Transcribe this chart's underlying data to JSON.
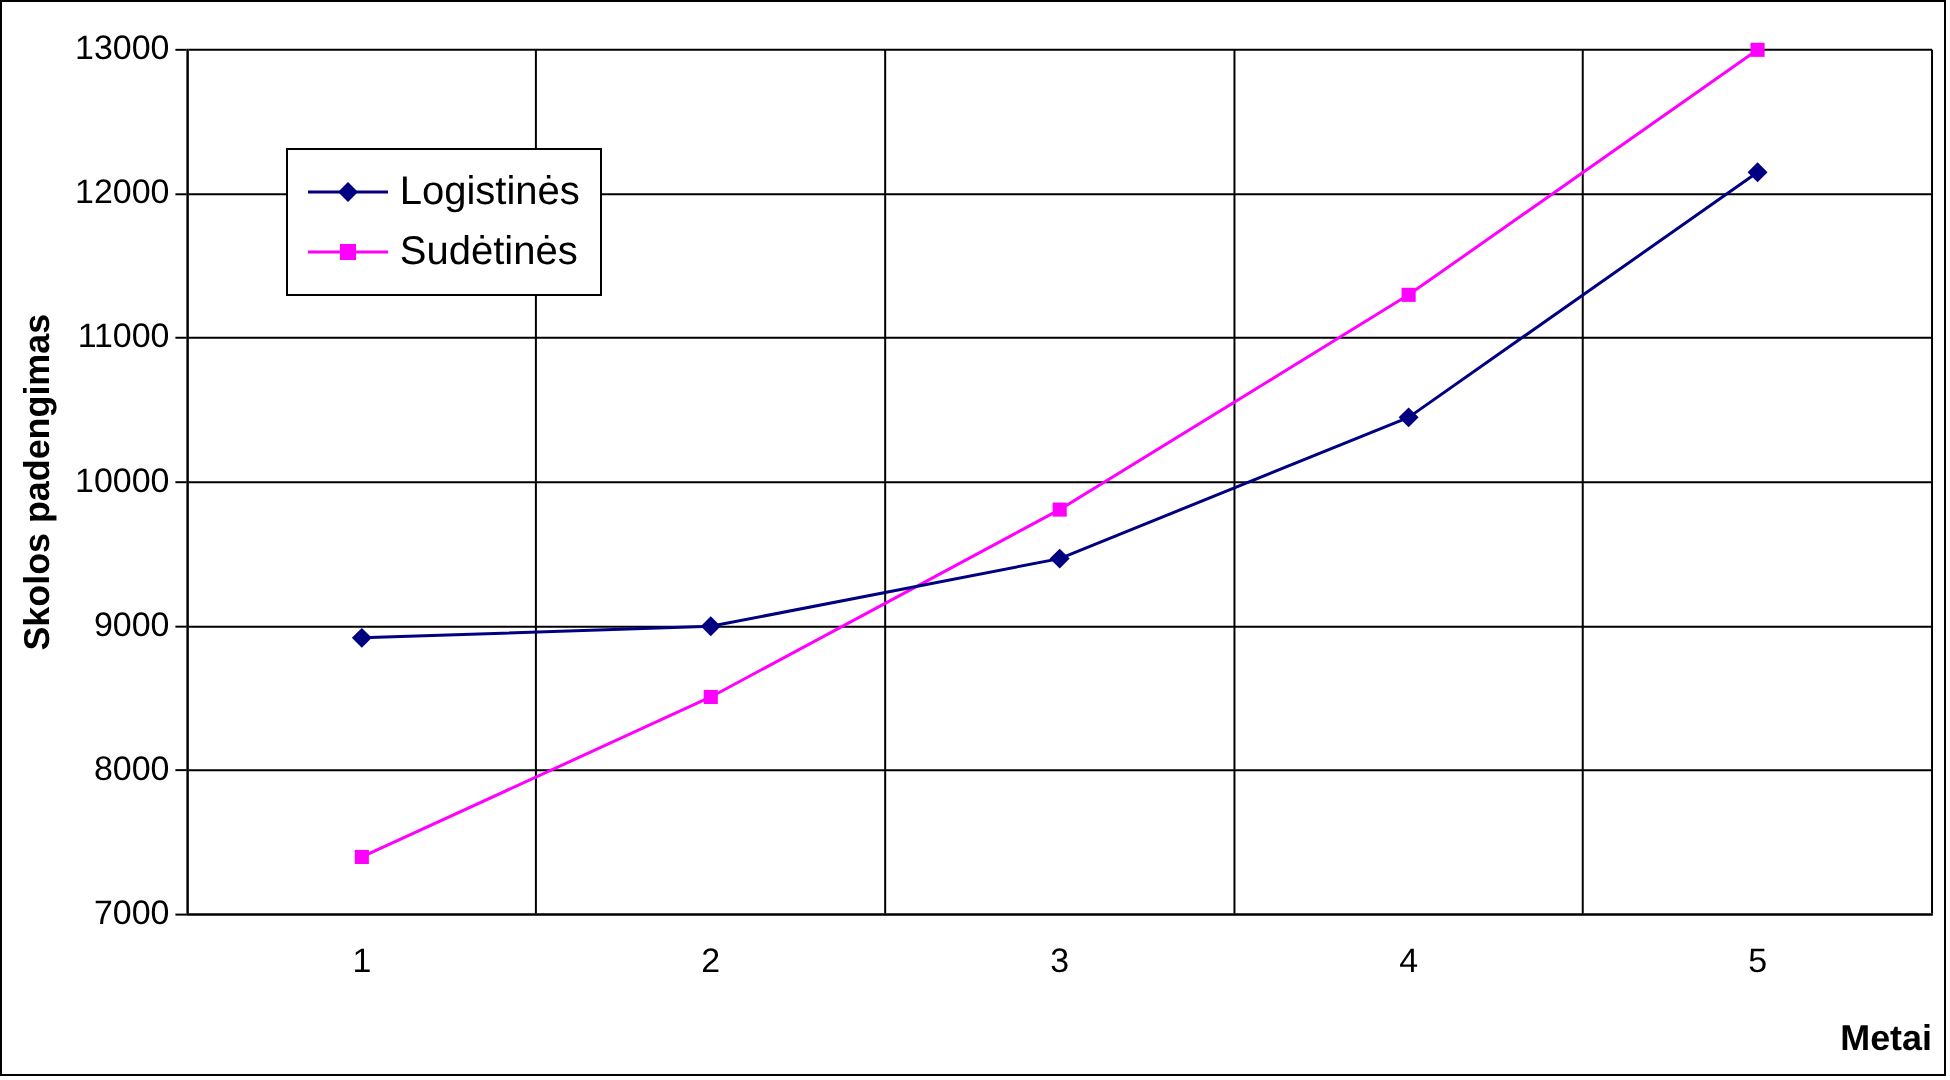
{
  "chart_data": {
    "type": "line",
    "xlabel": "Metai",
    "ylabel": "Skolos padengimas",
    "categories": [
      "1",
      "2",
      "3",
      "4",
      "5"
    ],
    "series": [
      {
        "name": "Logistinės",
        "color": "#000080",
        "marker": "diamond",
        "values": [
          8920,
          9000,
          9470,
          10450,
          12150
        ]
      },
      {
        "name": "Sudėtinės",
        "color": "#ff00ff",
        "marker": "square",
        "values": [
          7400,
          8510,
          9810,
          11300,
          13000
        ]
      }
    ],
    "ylim": [
      7000,
      13000
    ],
    "yticks": [
      7000,
      8000,
      9000,
      10000,
      11000,
      12000,
      13000
    ],
    "grid": true,
    "legend": "top left",
    "line_style": "solid"
  }
}
